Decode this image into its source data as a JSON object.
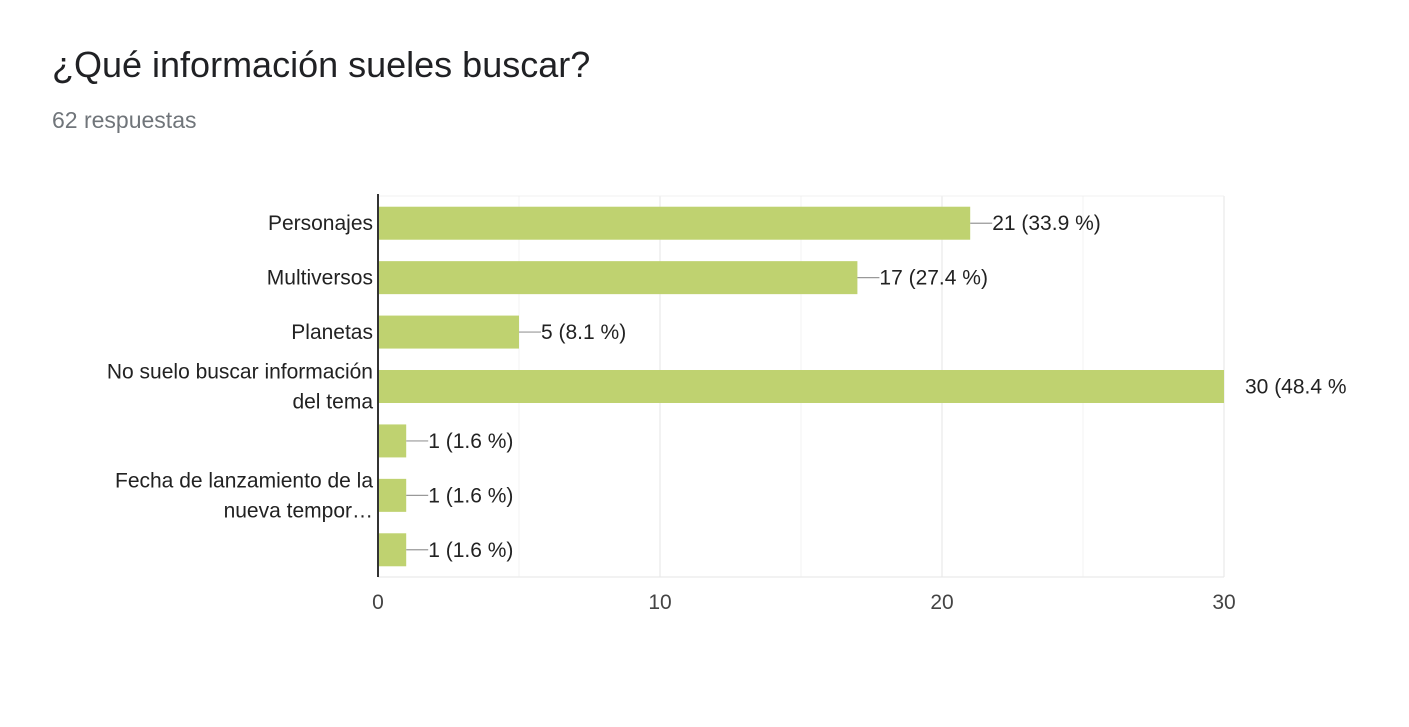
{
  "question": {
    "title": "¿Qué información sueles buscar?",
    "responses": "62 respuestas"
  },
  "colors": {
    "bar": "#bfd270",
    "axis": "#333333",
    "grid": "#ebebeb",
    "text": "#222222"
  },
  "chart_data": {
    "type": "bar",
    "orientation": "horizontal",
    "categories": [
      [
        "Personajes"
      ],
      [
        "Multiversos"
      ],
      [
        "Planetas"
      ],
      [
        "No suelo buscar información",
        "del tema"
      ],
      [],
      [
        "Fecha de lanzamiento de la",
        "nueva tempor…"
      ],
      []
    ],
    "values": [
      21,
      17,
      5,
      30,
      1,
      1,
      1
    ],
    "data_labels": [
      "21 (33.9 %)",
      "17 (27.4 %)",
      "5 (8.1 %)",
      "30 (48.4 %",
      "1 (1.6 %)",
      "1 (1.6 %)",
      "1 (1.6 %)"
    ],
    "xlim": [
      0,
      30
    ],
    "xticks": [
      0,
      10,
      20,
      30
    ],
    "grid": true,
    "legend": "none"
  }
}
